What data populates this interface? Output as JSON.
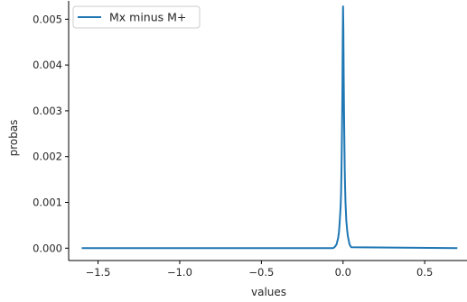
{
  "chart_data": {
    "type": "line",
    "title": "",
    "xlabel": "values",
    "ylabel": "probas",
    "xlim": [
      -1.68,
      0.77
    ],
    "ylim": [
      -0.00027,
      0.0054
    ],
    "xticks": [
      -1.5,
      -1.0,
      -0.5,
      0.0,
      0.5
    ],
    "xtick_labels": [
      "−1.5",
      "−1.0",
      "−0.5",
      "0.0",
      "0.5"
    ],
    "yticks": [
      0.0,
      0.001,
      0.002,
      0.003,
      0.004,
      0.005
    ],
    "ytick_labels": [
      "0.000",
      "0.001",
      "0.002",
      "0.003",
      "0.004",
      "0.005"
    ],
    "grid": false,
    "legend": "upper-left",
    "series": [
      {
        "name": "Mx minus M+",
        "color": "#1f77b4",
        "x": [
          -1.6,
          -0.06,
          -0.05,
          -0.04,
          -0.03,
          -0.025,
          -0.02,
          -0.015,
          -0.012,
          -0.01,
          -0.008,
          -0.006,
          -0.004,
          -0.002,
          0.0,
          0.002,
          0.004,
          0.006,
          0.008,
          0.01,
          0.012,
          0.015,
          0.02,
          0.025,
          0.03,
          0.04,
          0.05,
          0.7
        ],
        "y": [
          0.0,
          0.0,
          3e-05,
          8e-05,
          0.00022,
          0.00035,
          0.0006,
          0.0009,
          0.0012,
          0.0016,
          0.0021,
          0.0027,
          0.0034,
          0.0045,
          0.00528,
          0.0048,
          0.0038,
          0.003,
          0.0024,
          0.0018,
          0.0014,
          0.001,
          0.0006,
          0.0004,
          0.00025,
          8e-05,
          2e-05,
          0.0
        ]
      }
    ]
  }
}
